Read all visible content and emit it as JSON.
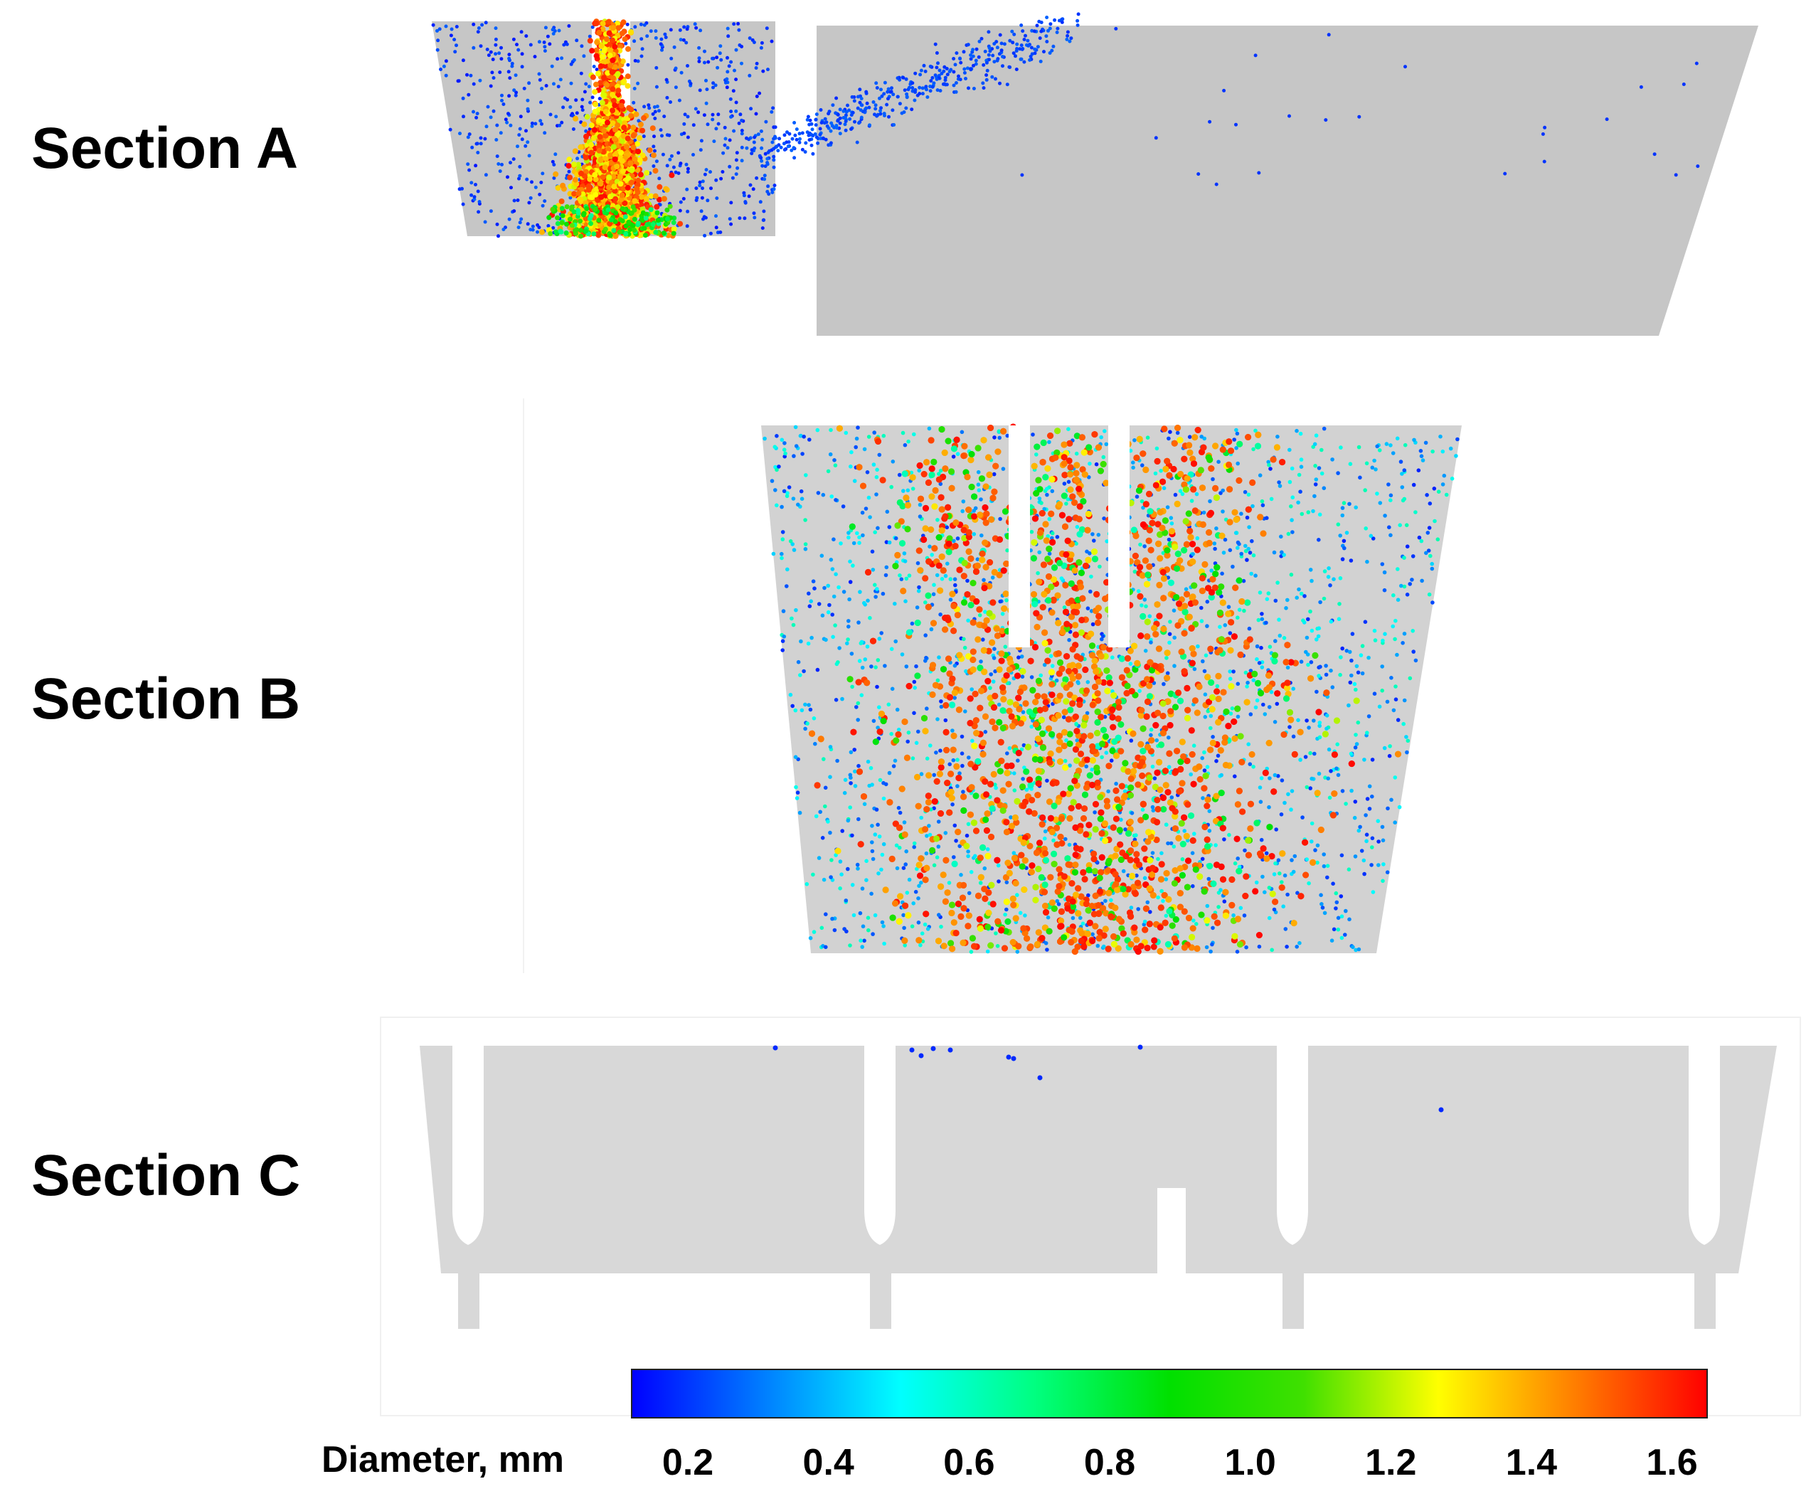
{
  "sections": [
    {
      "id": "A",
      "label": "Section A"
    },
    {
      "id": "B",
      "label": "Section B"
    },
    {
      "id": "C",
      "label": "Section C"
    }
  ],
  "colorbar": {
    "title": "Diameter, mm",
    "min": 0.12,
    "max": 1.65,
    "ticks": [
      "0.2",
      "0.4",
      "0.6",
      "0.8",
      "1.0",
      "1.2",
      "1.4",
      "1.6"
    ],
    "colormap": [
      "#0000ff",
      "#0080ff",
      "#00ffff",
      "#00ff80",
      "#00e000",
      "#40e000",
      "#ffff00",
      "#ff8000",
      "#ff0000"
    ]
  },
  "colors": {
    "domain_a": "#c6c6c6",
    "domain_b": "#d2d2d2",
    "domain_c": "#d8d8d8",
    "background": "#ffffff"
  }
}
